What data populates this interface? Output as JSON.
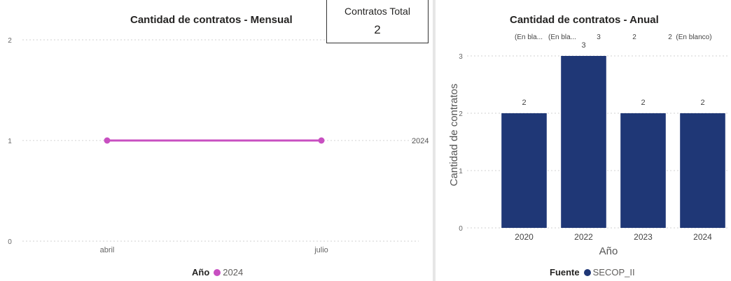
{
  "monthly": {
    "title": "Cantidad de contratos - Mensual",
    "legend_label": "Año",
    "legend_item": "2024",
    "legend_color": "#c84fc1",
    "chart_data": {
      "type": "line",
      "x": [
        "abril",
        "julio"
      ],
      "series": [
        {
          "name": "2024",
          "values": [
            1,
            1
          ],
          "color": "#c84fc1"
        }
      ],
      "yticks": [
        "0",
        "1",
        "2"
      ],
      "ylim": [
        0,
        2
      ],
      "end_label": "2024",
      "grid": true
    }
  },
  "card": {
    "label": "Contratos Total",
    "value": "2"
  },
  "annual": {
    "title": "Cantidad de contratos - Anual",
    "legend_label": "Fuente",
    "legend_item": "SECOP_II",
    "legend_color": "#1f3776",
    "top_labels": [
      "(En bla...",
      "(En bla...",
      "3",
      "2",
      "2",
      "(En blanco)"
    ],
    "chart_data": {
      "type": "bar",
      "categories": [
        "2020",
        "2022",
        "2023",
        "2024"
      ],
      "values": [
        2,
        3,
        2,
        2
      ],
      "data_labels": [
        "2",
        "3",
        "2",
        "2"
      ],
      "xlabel": "Año",
      "ylabel": "Cantidad de contratos",
      "yticks": [
        "0",
        "1",
        "2",
        "3"
      ],
      "ylim": [
        0,
        3
      ],
      "color": "#1f3776",
      "grid": true
    }
  }
}
